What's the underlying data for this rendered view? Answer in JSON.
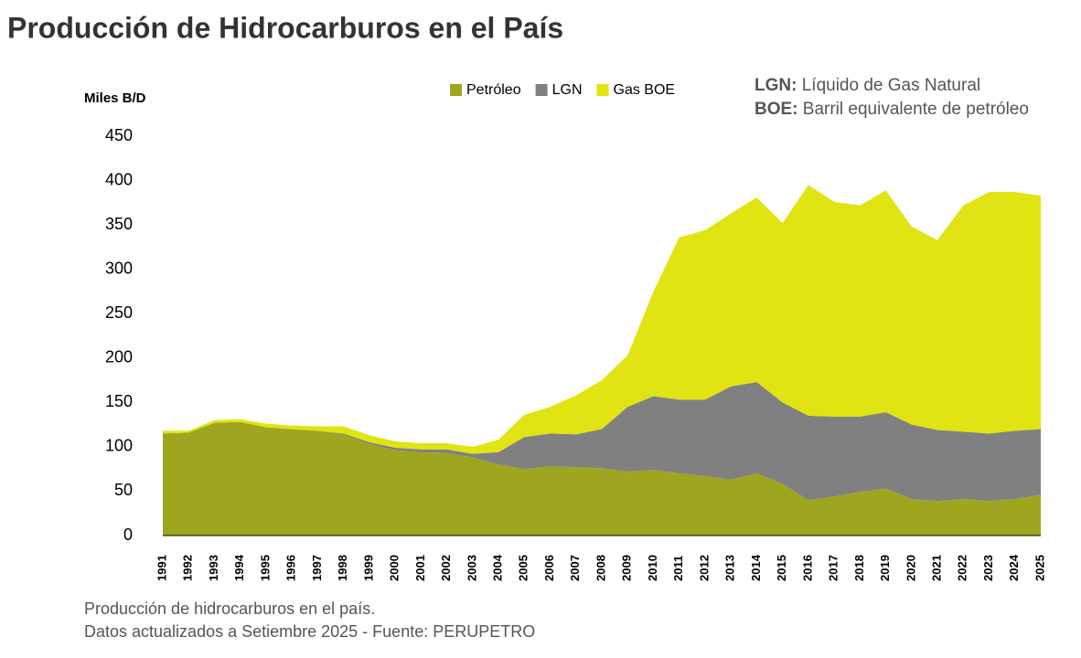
{
  "chart_data": {
    "type": "stacked-area",
    "title": "Producción de Hidrocarburos en el País",
    "y_label": "Miles B/D",
    "notes": [
      {
        "term": "LGN:",
        "text": "Líquido de Gas Natural"
      },
      {
        "term": "BOE:",
        "text": "Barril equivalente de petróleo"
      }
    ],
    "footer": [
      "Producción de hidrocarburos en el país.",
      "Datos actualizados a Setiembre 2025 - Fuente: PERUPETRO"
    ],
    "categories": [
      "1991",
      "1992",
      "1993",
      "1994",
      "1995",
      "1996",
      "1997",
      "1998",
      "1999",
      "2000",
      "2001",
      "2002",
      "2003",
      "2004",
      "2005",
      "2006",
      "2007",
      "2008",
      "2009",
      "2010",
      "2011",
      "2012",
      "2013",
      "2014",
      "2015",
      "2016",
      "2017",
      "2018",
      "2019",
      "2020",
      "2021",
      "2022",
      "2023",
      "2024",
      "2025"
    ],
    "series": [
      {
        "name": "Petróleo",
        "color": "#9ea61f",
        "values": [
          115,
          116,
          127,
          128,
          122,
          120,
          118,
          114,
          103,
          96,
          94,
          93,
          88,
          80,
          75,
          78,
          77,
          76,
          72,
          74,
          70,
          67,
          63,
          70,
          58,
          40,
          44,
          49,
          53,
          41,
          39,
          41,
          39,
          41,
          46
        ]
      },
      {
        "name": "LGN",
        "color": "#808080",
        "values": [
          0,
          0,
          0,
          0,
          0,
          0,
          0,
          1,
          2,
          3,
          3,
          4,
          4,
          14,
          36,
          37,
          37,
          44,
          73,
          83,
          83,
          86,
          105,
          103,
          92,
          95,
          90,
          85,
          86,
          84,
          80,
          76,
          76,
          77,
          74
        ]
      },
      {
        "name": "Gas BOE",
        "color": "#e0e412",
        "values": [
          3,
          2,
          3,
          3,
          4,
          4,
          5,
          8,
          8,
          7,
          7,
          7,
          8,
          14,
          25,
          30,
          44,
          55,
          58,
          118,
          183,
          191,
          195,
          208,
          202,
          260,
          242,
          238,
          250,
          223,
          214,
          255,
          272,
          269,
          263
        ]
      }
    ],
    "ylim": [
      0,
      450
    ],
    "yticks": [
      0,
      50,
      100,
      150,
      200,
      250,
      300,
      350,
      400,
      450
    ],
    "grid": false
  }
}
